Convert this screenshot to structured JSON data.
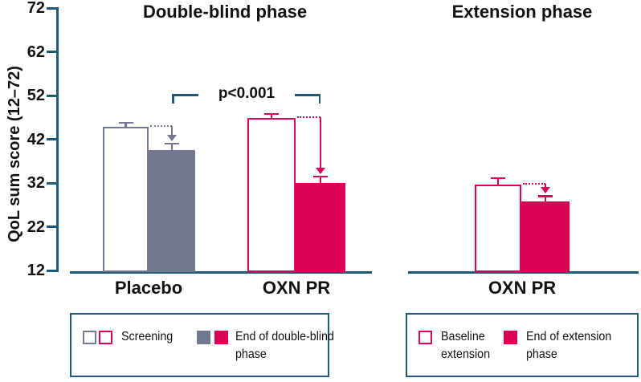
{
  "colors": {
    "axis_line": "#1f5a78",
    "crimson": "#dc0054",
    "slate_gray": "#717890",
    "text_black": "#111111",
    "background": "#ffffff"
  },
  "chart_data": {
    "type": "grouped_bar",
    "title": "",
    "ylabel": "QoL sum score (12–72)",
    "ylim": [
      12,
      72
    ],
    "yticks": [
      72,
      62,
      52,
      42,
      32,
      22,
      12
    ],
    "grid": false,
    "panels": [
      {
        "title": "Double-blind phase",
        "groups": [
          {
            "category": "Placebo",
            "bars": [
              {
                "series": "Screening",
                "value": 44.8,
                "error": 1.0,
                "fill": "#ffffff",
                "border": "#717890"
              },
              {
                "series": "End of double-blind phase",
                "value": 39.5,
                "error": 1.5,
                "fill": "#717890",
                "border": "#717890"
              }
            ],
            "change_arrow": true,
            "arrow_color": "#717890"
          },
          {
            "category": "OXN PR",
            "bars": [
              {
                "series": "Screening",
                "value": 46.8,
                "error": 1.0,
                "fill": "#ffffff",
                "border": "#dc0054"
              },
              {
                "series": "End of double-blind phase",
                "value": 32.0,
                "error": 1.5,
                "fill": "#dc0054",
                "border": "#dc0054"
              }
            ],
            "change_arrow": true,
            "arrow_color": "#dc0054"
          }
        ],
        "significance": {
          "text": "p<0.001"
        }
      },
      {
        "title": "Extension phase",
        "groups": [
          {
            "category": "OXN PR",
            "bars": [
              {
                "series": "Baseline extension",
                "value": 31.6,
                "error": 1.5,
                "fill": "#ffffff",
                "border": "#dc0054"
              },
              {
                "series": "End of extension phase",
                "value": 27.7,
                "error": 1.3,
                "fill": "#dc0054",
                "border": "#dc0054"
              }
            ],
            "change_arrow": true,
            "arrow_color": "#dc0054"
          }
        ]
      }
    ],
    "legends": [
      {
        "entries": [
          {
            "label": "Screening",
            "swatches": [
              {
                "fill": "#ffffff",
                "border": "#717890"
              },
              {
                "fill": "#ffffff",
                "border": "#dc0054"
              }
            ]
          },
          {
            "label": "End of double-blind\nphase",
            "swatches": [
              {
                "fill": "#717890",
                "border": "#717890"
              },
              {
                "fill": "#dc0054",
                "border": "#dc0054"
              }
            ]
          }
        ]
      },
      {
        "entries": [
          {
            "label": "Baseline\nextension",
            "swatches": [
              {
                "fill": "#ffffff",
                "border": "#dc0054"
              }
            ]
          },
          {
            "label": "End of extension\nphase",
            "swatches": [
              {
                "fill": "#dc0054",
                "border": "#dc0054"
              }
            ]
          }
        ]
      }
    ]
  }
}
